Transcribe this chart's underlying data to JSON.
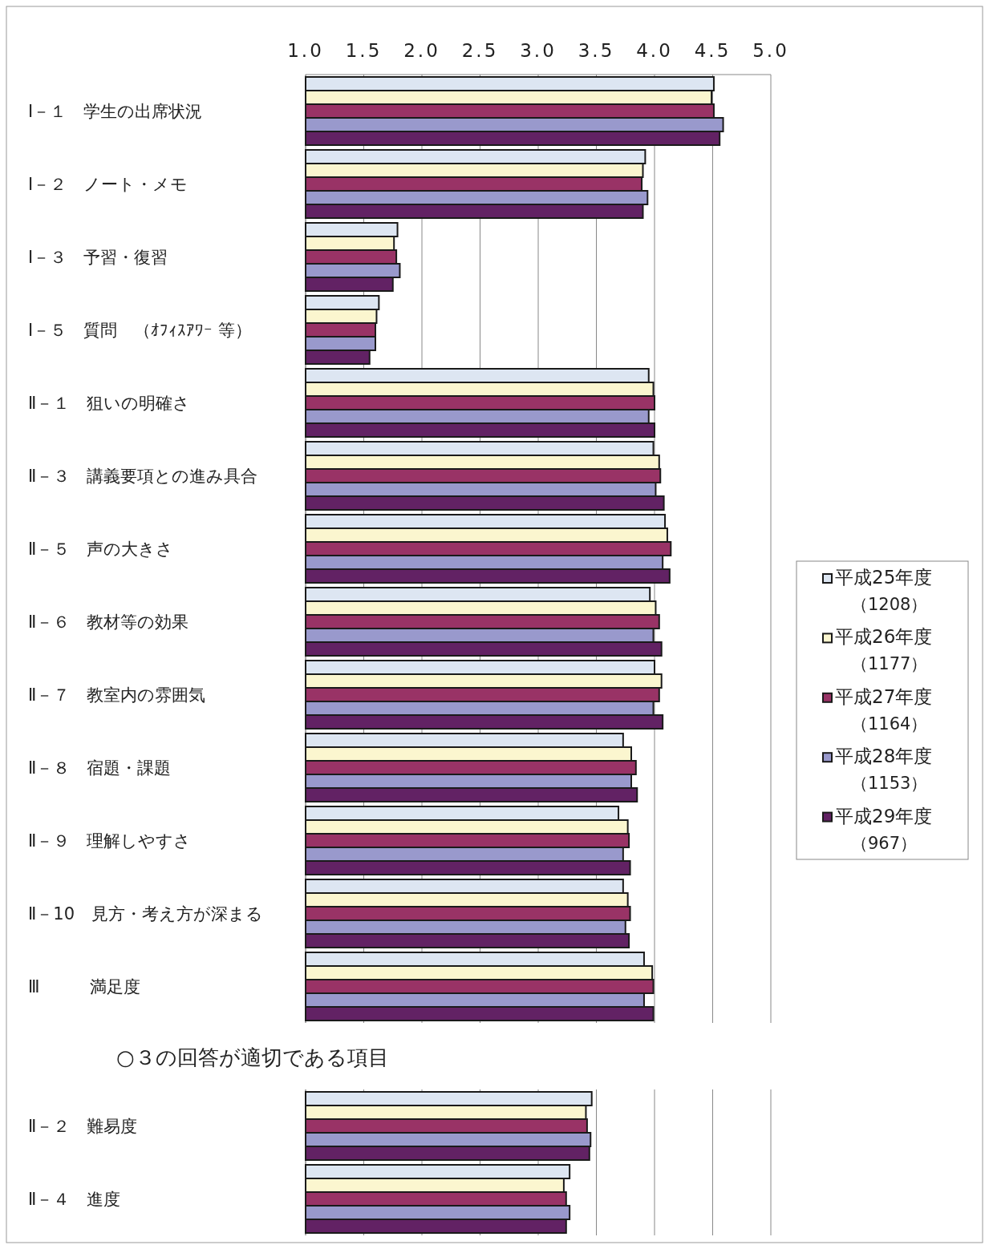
{
  "chart_data": {
    "type": "bar",
    "orientation": "horizontal",
    "categories": [
      "Ⅰ－１　学生の出席状況",
      "Ⅰ－２　ノート・メモ",
      "Ⅰ－３　予習・復習",
      "Ⅰ－５　質問　（ｵﾌｨｽｱﾜｰ 等）",
      "Ⅱ－１　狙いの明確さ",
      "Ⅱ－３　講義要項との進み具合",
      "Ⅱ－５　声の大きさ",
      "Ⅱ－６　教材等の効果",
      "Ⅱ－７　教室内の雰囲気",
      "Ⅱ－８　宿題・課題",
      "Ⅱ－９　理解しやすさ",
      "Ⅱ－10　見方・考え方が深まる",
      "Ⅲ　　　満足度",
      "Ⅱ－２　難易度",
      "Ⅱ－４　進度"
    ],
    "series": [
      {
        "name": "平成25年度（1208）",
        "color": "#dde6f2",
        "values": [
          4.51,
          3.92,
          1.79,
          1.63,
          3.95,
          3.99,
          4.09,
          3.96,
          4.0,
          3.73,
          3.69,
          3.73,
          3.91,
          3.46,
          3.27
        ]
      },
      {
        "name": "平成26年度（1177）",
        "color": "#fbf6cf",
        "values": [
          4.49,
          3.9,
          1.76,
          1.61,
          3.99,
          4.04,
          4.11,
          4.01,
          4.06,
          3.8,
          3.77,
          3.77,
          3.98,
          3.41,
          3.22
        ]
      },
      {
        "name": "平成27年度（1164）",
        "color": "#993366",
        "values": [
          4.51,
          3.89,
          1.78,
          1.6,
          4.0,
          4.05,
          4.14,
          4.04,
          4.04,
          3.84,
          3.78,
          3.79,
          3.99,
          3.42,
          3.24
        ]
      },
      {
        "name": "平成28年度（1153）",
        "color": "#9999cc",
        "values": [
          4.59,
          3.94,
          1.81,
          1.6,
          3.95,
          4.01,
          4.07,
          3.99,
          3.99,
          3.8,
          3.73,
          3.75,
          3.91,
          3.45,
          3.27
        ]
      },
      {
        "name": "平成29年度（967）",
        "color": "#622264",
        "values": [
          4.56,
          3.9,
          1.75,
          1.55,
          4.0,
          4.08,
          4.13,
          4.06,
          4.07,
          3.85,
          3.79,
          3.78,
          3.99,
          3.44,
          3.24
        ]
      }
    ],
    "xlim": [
      1,
      5
    ],
    "xticks": [
      {
        "value": 1,
        "label": "1.0"
      },
      {
        "value": 1.5,
        "label": "1.5"
      },
      {
        "value": 2,
        "label": "2.0"
      },
      {
        "value": 2.5,
        "label": "2.5"
      },
      {
        "value": 3,
        "label": "3.0"
      },
      {
        "value": 3.5,
        "label": "3.5"
      },
      {
        "value": 4,
        "label": "4.0"
      },
      {
        "value": 4.5,
        "label": "4.5"
      },
      {
        "value": 5,
        "label": "5.0"
      }
    ],
    "annotations": [
      "○３の回答が適切である項目"
    ],
    "grid": "x",
    "legend": "right"
  }
}
